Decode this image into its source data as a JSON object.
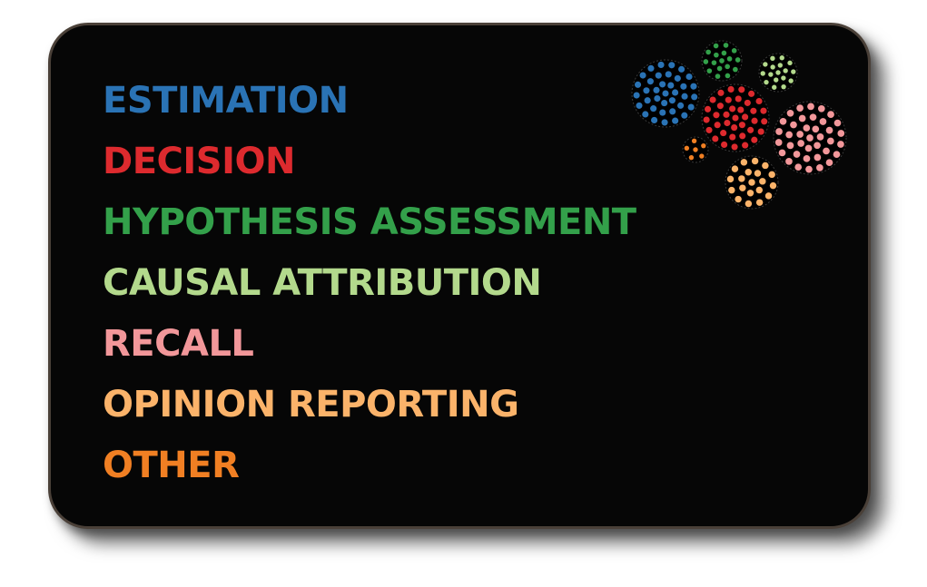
{
  "legend": {
    "items": [
      {
        "label": "ESTIMATION",
        "color": "#2a73b5"
      },
      {
        "label": "DECISION",
        "color": "#dd2a2e"
      },
      {
        "label": "HYPOTHESIS ASSESSMENT",
        "color": "#33a04a"
      },
      {
        "label": "CAUSAL ATTRIBUTION",
        "color": "#b3d98c"
      },
      {
        "label": "RECALL",
        "color": "#f2979a"
      },
      {
        "label": "OPINION REPORTING",
        "color": "#fbb36a"
      },
      {
        "label": "OTHER",
        "color": "#f07f23"
      }
    ]
  },
  "clusters": [
    {
      "name": "blue-cluster",
      "color": "#2a73b5"
    },
    {
      "name": "dark-green-cluster",
      "color": "#33a04a"
    },
    {
      "name": "light-green-cluster",
      "color": "#b3d98c"
    },
    {
      "name": "red-cluster",
      "color": "#dd2a2e"
    },
    {
      "name": "pink-cluster",
      "color": "#f2979a"
    },
    {
      "name": "small-orange-cluster",
      "color": "#f07f23"
    },
    {
      "name": "light-orange-cluster",
      "color": "#fbb36a"
    }
  ]
}
